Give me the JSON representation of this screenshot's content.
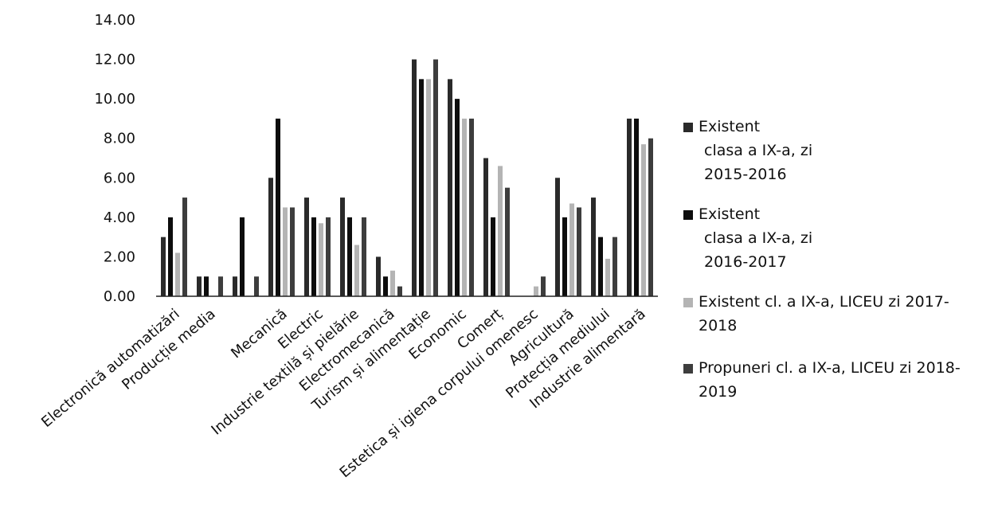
{
  "chart_data": {
    "type": "bar",
    "ylim": [
      0,
      14
    ],
    "ytick_labels": [
      "0.00",
      "2.00",
      "4.00",
      "6.00",
      "8.00",
      "10.00",
      "12.00",
      "14.00"
    ],
    "grid": false,
    "legend_position": "right",
    "categories": [
      "Electronică automatizări",
      "Producție media",
      "",
      "Mecanică",
      "Electric",
      "Industrie textilă și pielărie",
      "Electromecanică",
      "Turism și alimentație",
      "Economic",
      "Comerț",
      "Estetica și igiena corpului omenesc",
      "Agricultură",
      "Protecția mediului",
      "Industrie alimentară"
    ],
    "series": [
      {
        "name": "Existent clasa a IX-a, zi 2015-2016",
        "color": "#2a2a2a",
        "legend_lines": [
          "Existent",
          "clasa a IX-a, zi",
          "2015-2016"
        ],
        "values": [
          3,
          1,
          1,
          6,
          5,
          5,
          2,
          12,
          11,
          7,
          0,
          6,
          5,
          9
        ]
      },
      {
        "name": "Existent clasa a IX-a, zi 2016-2017",
        "color": "#0d0d0d",
        "legend_lines": [
          "Existent",
          "clasa a IX-a, zi",
          "2016-2017"
        ],
        "values": [
          4,
          1,
          4,
          9,
          4,
          4,
          1,
          11,
          10,
          4,
          0,
          4,
          3,
          9
        ]
      },
      {
        "name": "Existent cl. a IX-a, LICEU zi 2017-2018",
        "color": "#b4b4b4",
        "legend_lines": [
          "Existent cl. a IX-a, LICEU zi 2017-",
          "2018"
        ],
        "values": [
          2.2,
          0,
          0,
          4.5,
          3.7,
          2.6,
          1.3,
          11,
          9,
          6.6,
          0.5,
          4.7,
          1.9,
          7.7
        ]
      },
      {
        "name": "Propuneri cl. a IX-a, LICEU zi 2018-2019",
        "color": "#3d3d3d",
        "legend_lines": [
          "Propuneri  cl. a IX-a, LICEU zi 2018-",
          "2019"
        ],
        "values": [
          5,
          1,
          1,
          4.5,
          4,
          4,
          0.5,
          12,
          9,
          5.5,
          1,
          4.5,
          3,
          8
        ]
      }
    ]
  }
}
